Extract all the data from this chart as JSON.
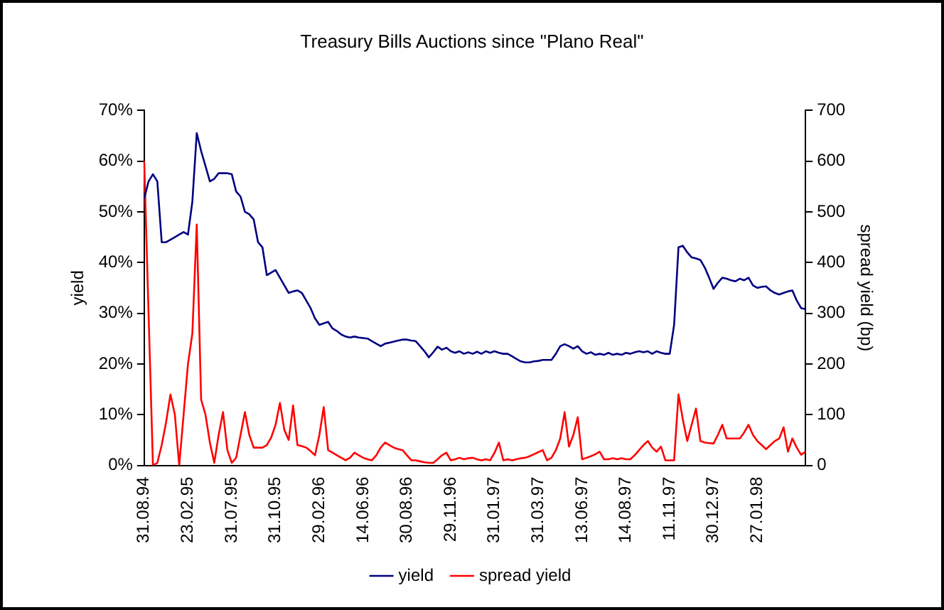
{
  "chart_data": {
    "type": "line",
    "title": "Treasury Bills Auctions since \"Plano Real\"",
    "ylabel": "yield",
    "y2label": "spread yield (bp)",
    "categories": [
      "31.08.94",
      null,
      null,
      null,
      null,
      null,
      null,
      null,
      null,
      null,
      "23.02.95",
      null,
      null,
      null,
      null,
      null,
      null,
      null,
      null,
      null,
      "31.07.95",
      null,
      null,
      null,
      null,
      null,
      null,
      null,
      null,
      null,
      "31.10.95",
      null,
      null,
      null,
      null,
      null,
      null,
      null,
      null,
      null,
      "29.02.96",
      null,
      null,
      null,
      null,
      null,
      null,
      null,
      null,
      null,
      "14.06.96",
      null,
      null,
      null,
      null,
      null,
      null,
      null,
      null,
      null,
      "30.08.96",
      null,
      null,
      null,
      null,
      null,
      null,
      null,
      null,
      null,
      "29.11.96",
      null,
      null,
      null,
      null,
      null,
      null,
      null,
      null,
      null,
      "31.01.97",
      null,
      null,
      null,
      null,
      null,
      null,
      null,
      null,
      null,
      "31.03.97",
      null,
      null,
      null,
      null,
      null,
      null,
      null,
      null,
      null,
      "13.06.97",
      null,
      null,
      null,
      null,
      null,
      null,
      null,
      null,
      null,
      "14.08.97",
      null,
      null,
      null,
      null,
      null,
      null,
      null,
      null,
      null,
      "11.11.97",
      null,
      null,
      null,
      null,
      null,
      null,
      null,
      null,
      null,
      "30.12.97",
      null,
      null,
      null,
      null,
      null,
      null,
      null,
      null,
      null,
      "27.01.98",
      null,
      null,
      null,
      null,
      null,
      null,
      null,
      null,
      null,
      null,
      null
    ],
    "series": [
      {
        "name": "yield",
        "color": "#000080",
        "values": [
          52.6,
          56,
          57.4,
          56,
          44,
          44,
          44.5,
          45,
          45.5,
          46,
          45.5,
          52,
          65.5,
          62,
          59,
          56,
          56.5,
          57.6,
          57.6,
          57.6,
          57.4,
          54,
          53,
          50,
          49.5,
          48.5,
          44,
          43,
          37.5,
          38,
          38.5,
          37,
          35.5,
          34,
          34.3,
          34.5,
          34,
          32.5,
          31,
          29,
          27.7,
          28,
          28.3,
          27,
          26.5,
          25.8,
          25.4,
          25.2,
          25.4,
          25.2,
          25.1,
          25,
          24.5,
          24,
          23.5,
          24,
          24.2,
          24.4,
          24.6,
          24.8,
          24.8,
          24.6,
          24.5,
          23.5,
          22.5,
          21.3,
          22.3,
          23.4,
          22.8,
          23.2,
          22.5,
          22.2,
          22.5,
          22,
          22.3,
          22,
          22.4,
          22,
          22.5,
          22.2,
          22.5,
          22.2,
          22,
          22,
          21.5,
          21,
          20.5,
          20.3,
          20.3,
          20.5,
          20.6,
          20.8,
          20.8,
          20.8,
          22,
          23.5,
          23.9,
          23.5,
          23,
          23.5,
          22.5,
          22,
          22.3,
          21.8,
          22,
          21.8,
          22.2,
          21.8,
          22,
          21.8,
          22.2,
          22,
          22.3,
          22.5,
          22.3,
          22.5,
          22,
          22.5,
          22.2,
          22,
          22,
          27.7,
          43,
          43.3,
          42,
          41,
          40.8,
          40.5,
          39,
          37,
          34.8,
          36,
          37,
          36.8,
          36.5,
          36.3,
          36.8,
          36.5,
          37,
          35.5,
          35,
          35.2,
          35.3,
          34.5,
          34,
          33.7,
          34,
          34.3,
          34.5,
          32.5,
          31,
          30.8
        ]
      },
      {
        "name": "spread yield",
        "color": "#ff0000",
        "axis": "y2",
        "values": [
          600,
          300,
          0,
          5,
          40,
          85,
          140,
          100,
          0,
          100,
          200,
          260,
          475,
          130,
          100,
          45,
          5,
          60,
          105,
          30,
          5,
          15,
          60,
          105,
          60,
          35,
          35,
          35,
          40,
          55,
          80,
          123,
          70,
          50,
          118,
          40,
          38,
          35,
          28,
          20,
          60,
          115,
          30,
          25,
          20,
          15,
          10,
          15,
          25,
          20,
          15,
          12,
          10,
          20,
          35,
          45,
          40,
          35,
          32,
          30,
          20,
          10,
          10,
          8,
          6,
          5,
          5,
          12,
          20,
          25,
          10,
          12,
          15,
          12,
          14,
          15,
          12,
          10,
          12,
          10,
          25,
          45,
          10,
          12,
          10,
          12,
          14,
          15,
          18,
          22,
          26,
          30,
          10,
          15,
          30,
          53,
          105,
          37,
          60,
          95,
          12,
          15,
          18,
          22,
          27,
          12,
          12,
          14,
          12,
          14,
          12,
          12,
          20,
          30,
          40,
          48,
          35,
          27,
          37,
          10,
          10,
          10,
          140,
          90,
          48,
          80,
          112,
          48,
          45,
          44,
          43,
          60,
          80,
          53,
          53,
          53,
          53,
          65,
          80,
          60,
          48,
          40,
          32,
          40,
          48,
          53,
          75,
          27,
          53,
          35,
          21,
          27
        ]
      }
    ],
    "ylim": [
      0,
      70
    ],
    "yticks": [
      {
        "value": 0,
        "label": "0%"
      },
      {
        "value": 10,
        "label": "10%"
      },
      {
        "value": 20,
        "label": "20%"
      },
      {
        "value": 30,
        "label": "30%"
      },
      {
        "value": 40,
        "label": "40%"
      },
      {
        "value": 50,
        "label": "50%"
      },
      {
        "value": 60,
        "label": "60%"
      },
      {
        "value": 70,
        "label": "70%"
      }
    ],
    "y2lim": [
      0,
      700
    ],
    "y2ticks": [
      0,
      100,
      200,
      300,
      400,
      500,
      600,
      700
    ],
    "grid": false,
    "legend": "bottom",
    "marker": "none",
    "line_style": "solid"
  }
}
